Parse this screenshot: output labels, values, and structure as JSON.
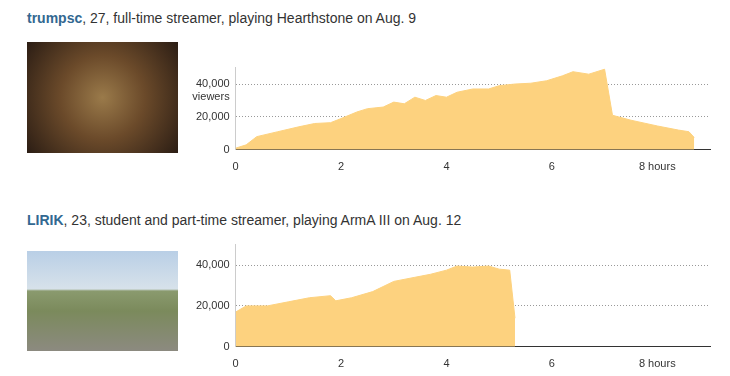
{
  "chart_data": [
    {
      "type": "area",
      "title": "trumpsc",
      "subtitle": ", 27, full-time streamer, playing Hearthstone on Aug. 9",
      "annotation": "viewers",
      "x": [
        0,
        0.2,
        0.4,
        0.8,
        1.2,
        1.5,
        1.8,
        2.0,
        2.3,
        2.5,
        2.8,
        3.0,
        3.2,
        3.4,
        3.6,
        3.8,
        4.0,
        4.2,
        4.5,
        4.8,
        5.0,
        5.3,
        5.6,
        5.9,
        6.2,
        6.4,
        6.7,
        7.0,
        7.15,
        7.5,
        8.0,
        8.4,
        8.6,
        8.7
      ],
      "values": [
        1000,
        3000,
        8000,
        11000,
        14000,
        16000,
        16500,
        19000,
        23000,
        25000,
        26000,
        29000,
        28000,
        32000,
        30000,
        33000,
        32000,
        35000,
        37000,
        37000,
        39000,
        40000,
        40500,
        42000,
        45000,
        47500,
        46000,
        49000,
        21000,
        18000,
        14500,
        12000,
        11000,
        7500
      ],
      "color": "#fdd27f",
      "xlim": [
        0,
        9
      ],
      "xticks": [
        0,
        2,
        4,
        6,
        {
          "value": 8,
          "label": "8 hours"
        }
      ],
      "ylim": [
        0,
        50000
      ],
      "yticks": [
        0,
        {
          "value": 20000,
          "label": "20,000"
        },
        {
          "value": 40000,
          "label": "40,000"
        }
      ],
      "grid": true
    },
    {
      "type": "area",
      "title": "LIRIK",
      "subtitle": ", 23, student and part-time streamer, playing ArmA III on Aug. 12",
      "x": [
        0,
        0.2,
        0.6,
        1.0,
        1.4,
        1.8,
        1.9,
        2.2,
        2.6,
        3.0,
        3.4,
        3.7,
        4.0,
        4.2,
        4.5,
        4.8,
        5.0,
        5.2,
        5.3
      ],
      "values": [
        17000,
        20000,
        20000,
        22000,
        24000,
        25000,
        22500,
        24000,
        27000,
        32000,
        34000,
        35500,
        37500,
        39500,
        39000,
        39500,
        38000,
        37500,
        14000
      ],
      "color": "#fdd27f",
      "xlim": [
        0,
        9
      ],
      "xticks": [
        0,
        2,
        4,
        6,
        {
          "value": 8,
          "label": "8 hours"
        }
      ],
      "ylim": [
        0,
        50000
      ],
      "yticks": [
        0,
        {
          "value": 20000,
          "label": "20,000"
        },
        {
          "value": 40000,
          "label": "40,000"
        }
      ],
      "grid": true
    }
  ]
}
